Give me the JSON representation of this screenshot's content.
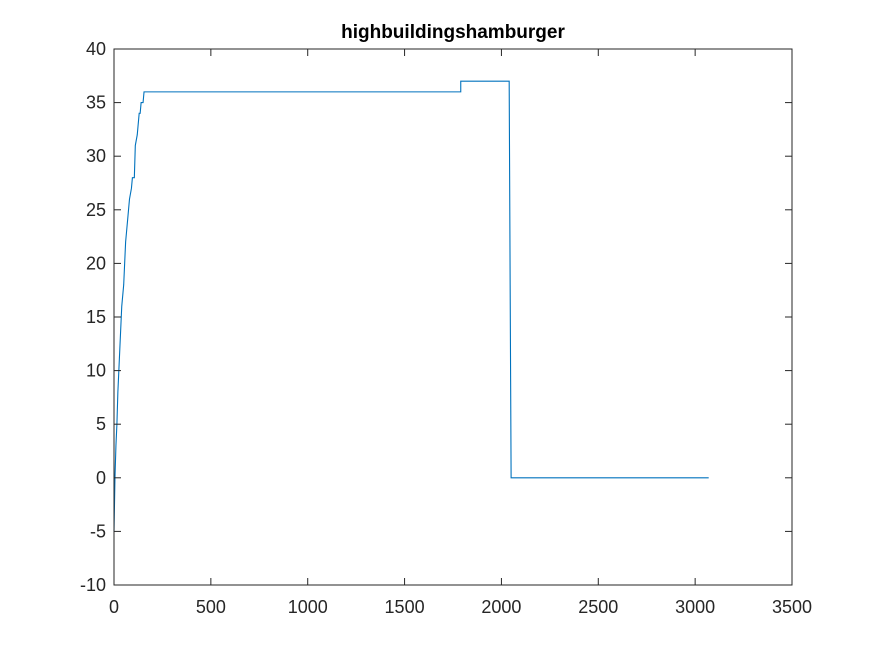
{
  "chart_data": {
    "type": "line",
    "title": "highbuildingshamburger",
    "xlabel": "",
    "ylabel": "",
    "xlim": [
      0,
      3500
    ],
    "ylim": [
      -10,
      40
    ],
    "xticks": [
      0,
      500,
      1000,
      1500,
      2000,
      2500,
      3000,
      3500
    ],
    "yticks": [
      -10,
      -5,
      0,
      5,
      10,
      15,
      20,
      25,
      30,
      35,
      40
    ],
    "xtick_labels": [
      "0",
      "500",
      "1000",
      "1500",
      "2000",
      "2500",
      "3000",
      "3500"
    ],
    "ytick_labels": [
      "-10",
      "-5",
      "0",
      "5",
      "10",
      "15",
      "20",
      "25",
      "30",
      "35",
      "40"
    ],
    "grid": false,
    "legend": "none",
    "series": [
      {
        "color": "#0072BD",
        "x": [
          0,
          5,
          10,
          15,
          20,
          25,
          30,
          40,
          50,
          55,
          60,
          65,
          70,
          75,
          80,
          90,
          95,
          100,
          105,
          110,
          120,
          125,
          130,
          135,
          140,
          145,
          150,
          155,
          160,
          1790,
          1790,
          1800,
          2040,
          2045,
          2050,
          2055,
          3070
        ],
        "y": [
          -5,
          0,
          3,
          5,
          8,
          10,
          12,
          16,
          18,
          20,
          22,
          23,
          24,
          25,
          26,
          27,
          28,
          28,
          28,
          31,
          32,
          33,
          34,
          34,
          35,
          35,
          35,
          36,
          36,
          36,
          37,
          37,
          37,
          18,
          0,
          0,
          0
        ]
      }
    ],
    "colors": {
      "line": "#0072BD",
      "axes": "#262626",
      "background": "#ffffff"
    }
  }
}
